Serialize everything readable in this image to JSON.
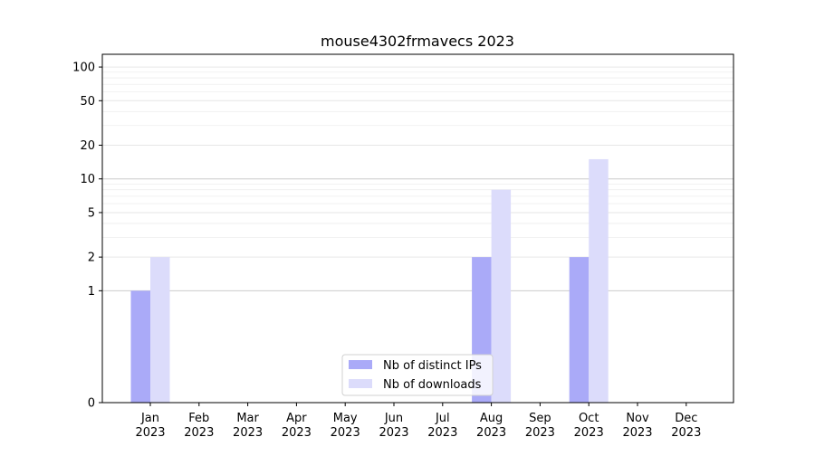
{
  "chart_data": {
    "type": "bar",
    "title": "mouse4302frmavecs 2023",
    "xlabel": "",
    "ylabel": "",
    "yscale": "symlog",
    "ylim": [
      0,
      130
    ],
    "yticks": [
      0,
      1,
      2,
      5,
      10,
      20,
      50,
      100
    ],
    "yticklabels": [
      "0",
      "1",
      "2",
      "5",
      "10",
      "20",
      "50",
      "100"
    ],
    "grid": "horizontal",
    "legend_position": "bottom-center",
    "categories": [
      [
        "Jan",
        "2023"
      ],
      [
        "Feb",
        "2023"
      ],
      [
        "Mar",
        "2023"
      ],
      [
        "Apr",
        "2023"
      ],
      [
        "May",
        "2023"
      ],
      [
        "Jun",
        "2023"
      ],
      [
        "Jul",
        "2023"
      ],
      [
        "Aug",
        "2023"
      ],
      [
        "Sep",
        "2023"
      ],
      [
        "Oct",
        "2023"
      ],
      [
        "Nov",
        "2023"
      ],
      [
        "Dec",
        "2023"
      ]
    ],
    "series": [
      {
        "name": "Nb of distinct IPs",
        "color": "#aaaaf8",
        "values": [
          1,
          0,
          0,
          0,
          0,
          0,
          0,
          2,
          0,
          2,
          0,
          0
        ]
      },
      {
        "name": "Nb of downloads",
        "color": "#dcdcfb",
        "values": [
          2,
          0,
          0,
          0,
          0,
          0,
          0,
          8,
          0,
          15,
          0,
          0
        ]
      }
    ]
  }
}
